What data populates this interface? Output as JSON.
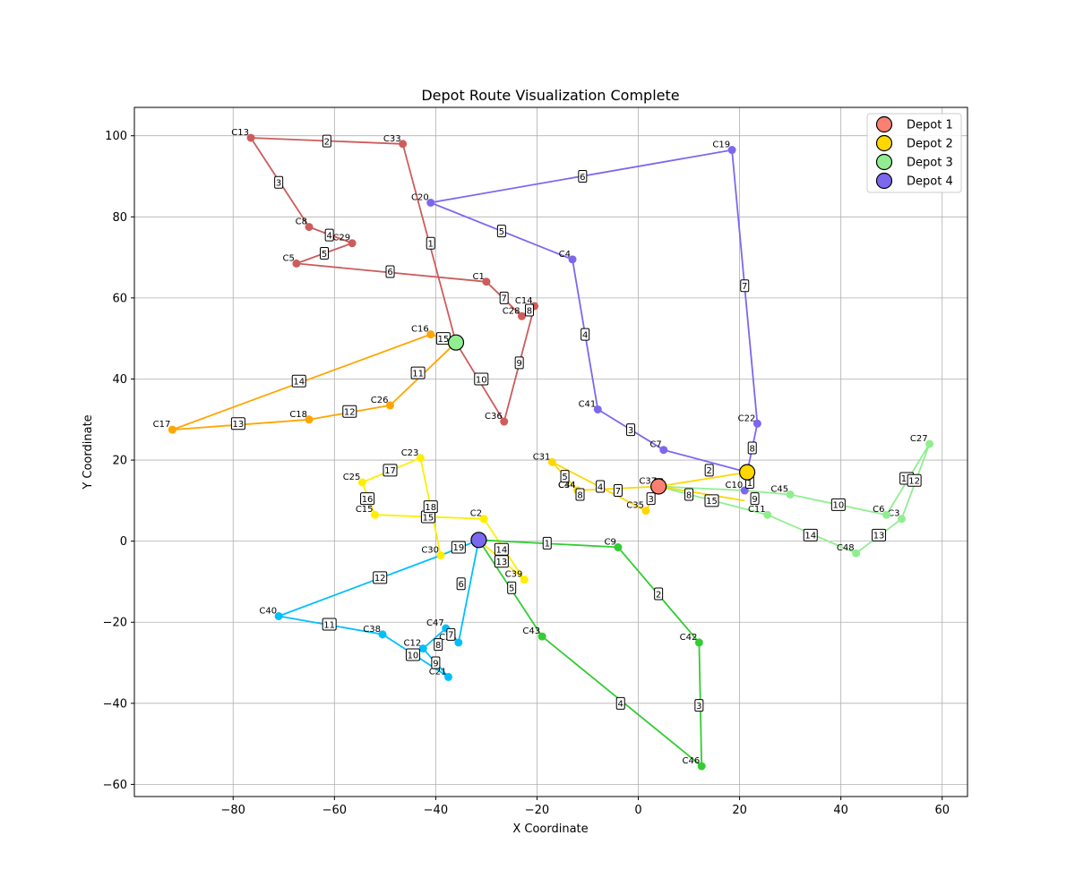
{
  "chart_data": {
    "type": "line",
    "title": "Depot Route Visualization Complete",
    "xlabel": "X Coordinate",
    "ylabel": "Y Coordinate",
    "xlim": [
      -99.5,
      65
    ],
    "ylim": [
      -63,
      107
    ],
    "xticks": [
      -80,
      -60,
      -40,
      -20,
      0,
      20,
      40,
      60
    ],
    "yticks": [
      -60,
      -40,
      -20,
      0,
      20,
      40,
      60,
      80,
      100
    ],
    "grid": true,
    "legend_position": "top-right",
    "depots": [
      {
        "name": "Depot 1",
        "x": 4,
        "y": 13.5,
        "color": "#FA8072"
      },
      {
        "name": "Depot 2",
        "x": 21.5,
        "y": 17,
        "color": "#FFD700"
      },
      {
        "name": "Depot 3",
        "x": -36,
        "y": 49,
        "color": "#90EE90"
      },
      {
        "name": "Depot 4",
        "x": -31.5,
        "y": 0.3,
        "color": "#7B68EE"
      }
    ],
    "customers": [
      {
        "id": "C1",
        "x": -30,
        "y": 64,
        "color": "#CD5C5C"
      },
      {
        "id": "C2",
        "x": -30.5,
        "y": 5.5,
        "color": "#FFEE00"
      },
      {
        "id": "C3",
        "x": 52,
        "y": 5.5,
        "color": "#90EE90"
      },
      {
        "id": "C4",
        "x": -13,
        "y": 69.5,
        "color": "#7B68EE"
      },
      {
        "id": "C5",
        "x": -67.5,
        "y": 68.5,
        "color": "#CD5C5C"
      },
      {
        "id": "C6",
        "x": 49,
        "y": 6.5,
        "color": "#90EE90"
      },
      {
        "id": "C7",
        "x": 5,
        "y": 22.5,
        "color": "#7B68EE"
      },
      {
        "id": "C8",
        "x": -65,
        "y": 77.5,
        "color": "#CD5C5C"
      },
      {
        "id": "C9",
        "x": -4,
        "y": -1.5,
        "color": "#32CD32"
      },
      {
        "id": "C10",
        "x": 21,
        "y": 12.5,
        "color": "#7B68EE"
      },
      {
        "id": "C11",
        "x": 25.5,
        "y": 6.5,
        "color": "#90EE90"
      },
      {
        "id": "C12",
        "x": -42.5,
        "y": -26.5,
        "color": "#00BFFF"
      },
      {
        "id": "C13",
        "x": -76.5,
        "y": 99.5,
        "color": "#CD5C5C"
      },
      {
        "id": "C14",
        "x": -20.5,
        "y": 58,
        "color": "#CD5C5C"
      },
      {
        "id": "C15",
        "x": -52,
        "y": 6.5,
        "color": "#FFEE00"
      },
      {
        "id": "C16",
        "x": -41,
        "y": 51,
        "color": "#FFA500"
      },
      {
        "id": "C17",
        "x": -92,
        "y": 27.5,
        "color": "#FFA500"
      },
      {
        "id": "C18",
        "x": -65,
        "y": 30,
        "color": "#FFA500"
      },
      {
        "id": "C19",
        "x": 18.5,
        "y": 96.5,
        "color": "#7B68EE"
      },
      {
        "id": "C20",
        "x": -41,
        "y": 83.5,
        "color": "#7B68EE"
      },
      {
        "id": "C21",
        "x": -37.5,
        "y": -33.5,
        "color": "#00BFFF"
      },
      {
        "id": "C22",
        "x": 23.5,
        "y": 29,
        "color": "#7B68EE"
      },
      {
        "id": "C23",
        "x": -43,
        "y": 20.5,
        "color": "#FFEE00"
      },
      {
        "id": "C24",
        "x": -35.5,
        "y": -25,
        "color": "#00BFFF"
      },
      {
        "id": "C25",
        "x": -54.5,
        "y": 14.5,
        "color": "#FFEE00"
      },
      {
        "id": "C26",
        "x": -49,
        "y": 33.5,
        "color": "#FFA500"
      },
      {
        "id": "C27",
        "x": 57.5,
        "y": 24,
        "color": "#90EE90"
      },
      {
        "id": "C28",
        "x": -23,
        "y": 55.5,
        "color": "#CD5C5C"
      },
      {
        "id": "C29",
        "x": -56.5,
        "y": 73.5,
        "color": "#CD5C5C"
      },
      {
        "id": "C30",
        "x": -39,
        "y": -3.5,
        "color": "#FFEE00"
      },
      {
        "id": "C31",
        "x": -17,
        "y": 19.5,
        "color": "#FFD700"
      },
      {
        "id": "C33",
        "x": -46.5,
        "y": 98,
        "color": "#CD5C5C"
      },
      {
        "id": "C34",
        "x": -12,
        "y": 12.5,
        "color": "#FFD700"
      },
      {
        "id": "C35",
        "x": 1.5,
        "y": 7.5,
        "color": "#FFD700"
      },
      {
        "id": "C36",
        "x": -26.5,
        "y": 29.5,
        "color": "#CD5C5C"
      },
      {
        "id": "C37",
        "x": 4,
        "y": 13.5,
        "color": "#FFD700"
      },
      {
        "id": "C38",
        "x": -50.5,
        "y": -23,
        "color": "#00BFFF"
      },
      {
        "id": "C39",
        "x": -22.5,
        "y": -9.5,
        "color": "#FFEE00"
      },
      {
        "id": "C40",
        "x": -71,
        "y": -18.5,
        "color": "#00BFFF"
      },
      {
        "id": "C41",
        "x": -8,
        "y": 32.5,
        "color": "#7B68EE"
      },
      {
        "id": "C42",
        "x": 12,
        "y": -25,
        "color": "#32CD32"
      },
      {
        "id": "C43",
        "x": -19,
        "y": -23.5,
        "color": "#32CD32"
      },
      {
        "id": "C44",
        "x": -12,
        "y": 12.5,
        "color": "#FFD700"
      },
      {
        "id": "C45",
        "x": 30,
        "y": 11.5,
        "color": "#90EE90"
      },
      {
        "id": "C46",
        "x": 12.5,
        "y": -55.5,
        "color": "#32CD32"
      },
      {
        "id": "C47",
        "x": -38,
        "y": -21.5,
        "color": "#00BFFF"
      },
      {
        "id": "C48",
        "x": 43,
        "y": -3,
        "color": "#90EE90"
      }
    ],
    "routes": [
      {
        "color": "#CD5C5C",
        "points": [
          [
            -36,
            49
          ],
          [
            -46.5,
            98
          ],
          [
            -76.5,
            99.5
          ],
          [
            -65,
            77.5
          ],
          [
            -56.5,
            73.5
          ],
          [
            -67.5,
            68.5
          ],
          [
            -30,
            64
          ],
          [
            -23,
            55.5
          ],
          [
            -20.5,
            58
          ],
          [
            -26.5,
            29.5
          ],
          [
            -36,
            49
          ]
        ]
      },
      {
        "color": "#7B68EE",
        "points": [
          [
            21.5,
            17
          ],
          [
            5,
            22.5
          ],
          [
            -8,
            32.5
          ],
          [
            -13,
            69.5
          ],
          [
            -41,
            83.5
          ],
          [
            18.5,
            96.5
          ],
          [
            23.5,
            29
          ],
          [
            21.5,
            17
          ]
        ]
      },
      {
        "color": "#90EE90",
        "points": [
          [
            4,
            13.5
          ],
          [
            21,
            12.5
          ],
          [
            30,
            11.5
          ],
          [
            49,
            6.5
          ],
          [
            57.5,
            24
          ],
          [
            52,
            5.5
          ],
          [
            43,
            -3
          ],
          [
            25.5,
            6.5
          ],
          [
            4,
            13.5
          ]
        ]
      },
      {
        "color": "#FFD700",
        "points": [
          [
            21.5,
            17
          ],
          [
            4,
            13.5
          ],
          [
            1.5,
            7.5
          ],
          [
            -17,
            19.5
          ],
          [
            -12,
            12.5
          ],
          [
            4,
            13.5
          ],
          [
            21,
            10
          ]
        ]
      },
      {
        "color": "#FFA500",
        "points": [
          [
            -36,
            49
          ],
          [
            -49,
            33.5
          ],
          [
            -65,
            30
          ],
          [
            -92,
            27.5
          ],
          [
            -41,
            51
          ],
          [
            -36,
            49
          ]
        ]
      },
      {
        "color": "#FFEE00",
        "points": [
          [
            -31.5,
            0.3
          ],
          [
            -22.5,
            -9.5
          ],
          [
            -30.5,
            5.5
          ],
          [
            -52,
            6.5
          ],
          [
            -54.5,
            14.5
          ],
          [
            -43,
            20.5
          ],
          [
            -39,
            -3.5
          ],
          [
            -31.5,
            0.3
          ]
        ]
      },
      {
        "color": "#32CD32",
        "points": [
          [
            -31.5,
            0.3
          ],
          [
            -4,
            -1.5
          ],
          [
            12,
            -25
          ],
          [
            12.5,
            -55.5
          ],
          [
            -19,
            -23.5
          ],
          [
            -31.5,
            0.3
          ]
        ]
      },
      {
        "color": "#00BFFF",
        "points": [
          [
            -31.5,
            0.3
          ],
          [
            -35.5,
            -25
          ],
          [
            -38,
            -21.5
          ],
          [
            -42.5,
            -26.5
          ],
          [
            -37.5,
            -33.5
          ],
          [
            -50.5,
            -23
          ],
          [
            -71,
            -18.5
          ],
          [
            -39,
            -3.5
          ],
          [
            -31.5,
            0.3
          ]
        ]
      }
    ],
    "step_labels": [
      {
        "text": "1",
        "x": -41,
        "y": 73.5
      },
      {
        "text": "2",
        "x": -61.5,
        "y": 98.7
      },
      {
        "text": "3",
        "x": -71,
        "y": 88.5
      },
      {
        "text": "4",
        "x": -61,
        "y": 75.5
      },
      {
        "text": "5",
        "x": -62,
        "y": 71
      },
      {
        "text": "6",
        "x": -49,
        "y": 66.5
      },
      {
        "text": "7",
        "x": -26.5,
        "y": 60
      },
      {
        "text": "8",
        "x": -21.5,
        "y": 57
      },
      {
        "text": "9",
        "x": -23.5,
        "y": 44
      },
      {
        "text": "10",
        "x": -31,
        "y": 40
      },
      {
        "text": "1",
        "x": 22,
        "y": 14.5
      },
      {
        "text": "2",
        "x": 14,
        "y": 17.5
      },
      {
        "text": "3",
        "x": -1.5,
        "y": 27.5
      },
      {
        "text": "4",
        "x": -10.5,
        "y": 51
      },
      {
        "text": "5",
        "x": -27,
        "y": 76.5
      },
      {
        "text": "6",
        "x": -11,
        "y": 90
      },
      {
        "text": "7",
        "x": 21,
        "y": 63
      },
      {
        "text": "8",
        "x": 22.5,
        "y": 23
      },
      {
        "text": "9",
        "x": 23,
        "y": 10.5
      },
      {
        "text": "8",
        "x": 10,
        "y": 11.5
      },
      {
        "text": "10",
        "x": 39.5,
        "y": 9
      },
      {
        "text": "11",
        "x": 53,
        "y": 15.5
      },
      {
        "text": "12",
        "x": 54.5,
        "y": 15
      },
      {
        "text": "13",
        "x": 47.5,
        "y": 1.5
      },
      {
        "text": "14",
        "x": 34,
        "y": 1.5
      },
      {
        "text": "15",
        "x": 14.5,
        "y": 10
      },
      {
        "text": "2",
        "x": 4,
        "y": 14
      },
      {
        "text": "3",
        "x": 2.5,
        "y": 10.5
      },
      {
        "text": "4",
        "x": -7.5,
        "y": 13.5
      },
      {
        "text": "5",
        "x": -14.5,
        "y": 16
      },
      {
        "text": "7",
        "x": -4,
        "y": 12.5
      },
      {
        "text": "8",
        "x": -11.5,
        "y": 11.5
      },
      {
        "text": "11",
        "x": -43.5,
        "y": 41.5
      },
      {
        "text": "12",
        "x": -57,
        "y": 32
      },
      {
        "text": "13",
        "x": -79,
        "y": 29
      },
      {
        "text": "14",
        "x": -67,
        "y": 39.5
      },
      {
        "text": "15",
        "x": -38.5,
        "y": 50
      },
      {
        "text": "13",
        "x": -27,
        "y": -5
      },
      {
        "text": "14",
        "x": -27,
        "y": -2
      },
      {
        "text": "15",
        "x": -41.5,
        "y": 6
      },
      {
        "text": "16",
        "x": -53.5,
        "y": 10.5
      },
      {
        "text": "17",
        "x": -49,
        "y": 17.5
      },
      {
        "text": "18",
        "x": -41,
        "y": 8.5
      },
      {
        "text": "19",
        "x": -35.5,
        "y": -1.5
      },
      {
        "text": "1",
        "x": -18,
        "y": -0.5
      },
      {
        "text": "2",
        "x": 4,
        "y": -13
      },
      {
        "text": "3",
        "x": 12,
        "y": -40.5
      },
      {
        "text": "4",
        "x": -3.5,
        "y": -40
      },
      {
        "text": "5",
        "x": -25,
        "y": -11.5
      },
      {
        "text": "6",
        "x": -35,
        "y": -10.5
      },
      {
        "text": "7",
        "x": -37,
        "y": -23
      },
      {
        "text": "8",
        "x": -39.5,
        "y": -25.5
      },
      {
        "text": "9",
        "x": -40,
        "y": -30
      },
      {
        "text": "10",
        "x": -44.5,
        "y": -28
      },
      {
        "text": "11",
        "x": -61,
        "y": -20.5
      },
      {
        "text": "12",
        "x": -51,
        "y": -9
      }
    ]
  }
}
